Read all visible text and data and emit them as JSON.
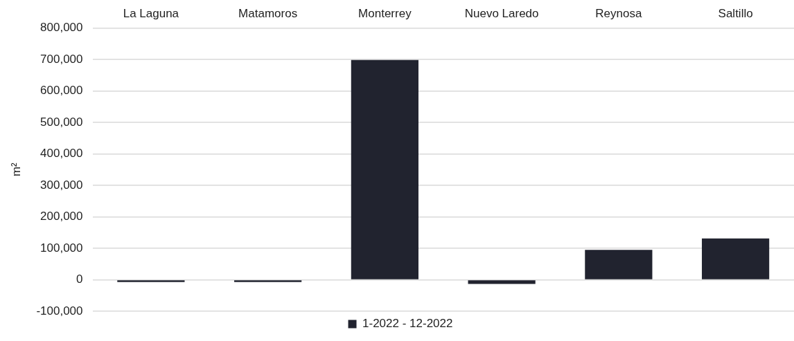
{
  "chart_data": {
    "type": "bar",
    "ylabel": "m²",
    "categories": [
      "La Laguna",
      "Matamoros",
      "Monterrey",
      "Nuevo Laredo",
      "Reynosa",
      "Saltillo"
    ],
    "series": [
      {
        "name": "1-2022 - 12-2022",
        "color": "#21232f",
        "values": [
          -7000,
          -7000,
          698000,
          -13000,
          95000,
          131000
        ]
      }
    ],
    "ylim": [
      -100000,
      800000
    ],
    "yticks": [
      {
        "value": -100000,
        "label": "-100,000"
      },
      0,
      {
        "value": 100000,
        "label": "100,000"
      },
      {
        "value": 200000,
        "label": "200,000"
      },
      {
        "value": 300000,
        "label": "300,000"
      },
      {
        "value": 400000,
        "label": "400,000"
      },
      {
        "value": 500000,
        "label": "500,000"
      },
      {
        "value": 600000,
        "label": "600,000"
      },
      {
        "value": 700000,
        "label": "700,000"
      },
      {
        "value": 800000,
        "label": "800,000"
      }
    ],
    "grid": "y",
    "legend": "bottom"
  }
}
